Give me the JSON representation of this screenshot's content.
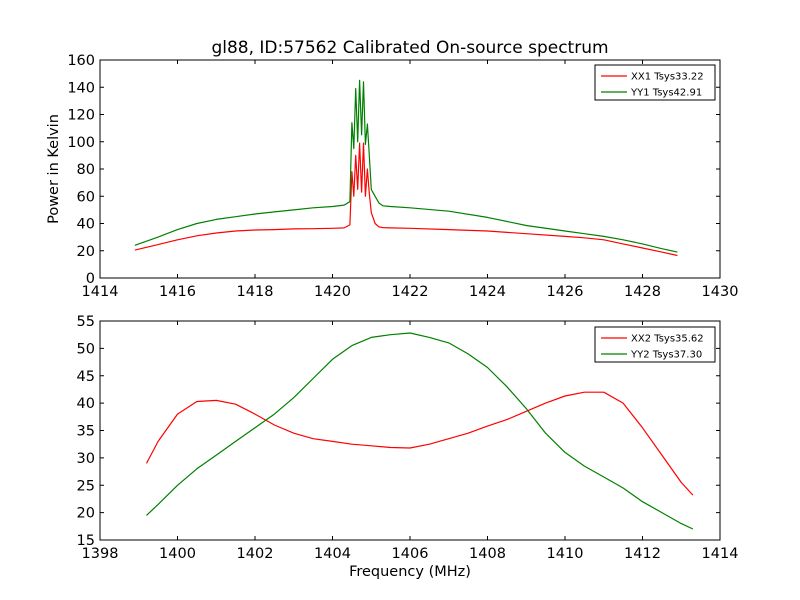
{
  "chart_data": [
    {
      "type": "line",
      "title": "gl88, ID:57562 Calibrated On-source spectrum",
      "xlabel": "",
      "ylabel": "Power in Kelvin",
      "xlim": [
        1414,
        1430
      ],
      "ylim": [
        0,
        160
      ],
      "xticks": [
        "1414",
        "1416",
        "1418",
        "1420",
        "1422",
        "1424",
        "1426",
        "1428",
        "1430"
      ],
      "yticks": [
        "0",
        "20",
        "40",
        "60",
        "80",
        "100",
        "120",
        "140",
        "160"
      ],
      "legend_position": "top-right",
      "grid": false,
      "series": [
        {
          "name": "XX1 Tsys33.22",
          "color": "#ff0000",
          "x": [
            1414.9,
            1415.5,
            1416.0,
            1416.5,
            1417.0,
            1417.5,
            1418.0,
            1418.5,
            1419.0,
            1419.5,
            1420.0,
            1420.3,
            1420.45,
            1420.5,
            1420.55,
            1420.6,
            1420.65,
            1420.7,
            1420.75,
            1420.8,
            1420.85,
            1420.9,
            1420.95,
            1421.0,
            1421.1,
            1421.2,
            1421.3,
            1421.5,
            1422.0,
            1423.0,
            1424.0,
            1425.0,
            1426.0,
            1426.5,
            1427.0,
            1427.5,
            1428.0,
            1428.5,
            1428.9
          ],
          "y": [
            20.5,
            24.5,
            28.0,
            31.0,
            33.0,
            34.5,
            35.2,
            35.5,
            36.0,
            36.2,
            36.5,
            36.8,
            39.0,
            78.0,
            60.0,
            90.0,
            65.0,
            99.0,
            63.0,
            99.0,
            60.0,
            80.0,
            62.0,
            48.0,
            40.0,
            37.5,
            37.0,
            36.8,
            36.5,
            35.5,
            34.5,
            32.5,
            30.5,
            29.5,
            28.0,
            25.0,
            22.0,
            19.0,
            16.5
          ]
        },
        {
          "name": "YY1 Tsys42.91",
          "color": "#008000",
          "x": [
            1414.9,
            1415.5,
            1416.0,
            1416.5,
            1417.0,
            1417.5,
            1418.0,
            1418.5,
            1419.0,
            1419.5,
            1420.0,
            1420.3,
            1420.45,
            1420.5,
            1420.55,
            1420.6,
            1420.65,
            1420.7,
            1420.75,
            1420.8,
            1420.85,
            1420.9,
            1420.95,
            1421.0,
            1421.1,
            1421.2,
            1421.3,
            1421.5,
            1422.0,
            1423.0,
            1424.0,
            1425.0,
            1426.0,
            1426.5,
            1427.0,
            1427.5,
            1428.0,
            1428.5,
            1428.9
          ],
          "y": [
            24.0,
            30.0,
            35.5,
            40.0,
            43.0,
            45.0,
            47.0,
            48.5,
            50.0,
            51.5,
            52.5,
            53.5,
            56.0,
            114.0,
            95.0,
            139.0,
            100.0,
            145.0,
            105.0,
            144.0,
            98.0,
            113.0,
            90.0,
            65.0,
            60.0,
            55.0,
            53.0,
            52.5,
            51.5,
            49.0,
            44.5,
            38.5,
            34.5,
            32.5,
            30.5,
            28.0,
            25.0,
            21.5,
            19.0
          ]
        }
      ]
    },
    {
      "type": "line",
      "title": "",
      "xlabel": "Frequency (MHz)",
      "ylabel": "",
      "xlim": [
        1398,
        1414
      ],
      "ylim": [
        15,
        55
      ],
      "xticks": [
        "1398",
        "1400",
        "1402",
        "1404",
        "1406",
        "1408",
        "1410",
        "1412",
        "1414"
      ],
      "yticks": [
        "15",
        "20",
        "25",
        "30",
        "35",
        "40",
        "45",
        "50",
        "55"
      ],
      "legend_position": "top-right",
      "grid": false,
      "series": [
        {
          "name": "XX2 Tsys35.62",
          "color": "#ff0000",
          "x": [
            1399.2,
            1399.5,
            1400.0,
            1400.5,
            1401.0,
            1401.5,
            1402.0,
            1402.5,
            1403.0,
            1403.5,
            1404.0,
            1404.5,
            1405.0,
            1405.5,
            1406.0,
            1406.5,
            1407.0,
            1407.5,
            1408.0,
            1408.5,
            1409.0,
            1409.5,
            1410.0,
            1410.5,
            1411.0,
            1411.5,
            1412.0,
            1412.5,
            1413.0,
            1413.3
          ],
          "y": [
            29.0,
            33.0,
            38.0,
            40.3,
            40.5,
            39.8,
            38.0,
            36.0,
            34.5,
            33.5,
            33.0,
            32.5,
            32.2,
            31.9,
            31.8,
            32.5,
            33.5,
            34.5,
            35.8,
            37.0,
            38.5,
            40.0,
            41.3,
            42.0,
            42.0,
            40.0,
            35.5,
            30.5,
            25.5,
            23.2
          ]
        },
        {
          "name": "YY2 Tsys37.30",
          "color": "#008000",
          "x": [
            1399.2,
            1399.5,
            1400.0,
            1400.5,
            1401.0,
            1401.5,
            1402.0,
            1402.5,
            1403.0,
            1403.5,
            1404.0,
            1404.5,
            1405.0,
            1405.5,
            1406.0,
            1406.5,
            1407.0,
            1407.5,
            1408.0,
            1408.5,
            1409.0,
            1409.5,
            1410.0,
            1410.5,
            1411.0,
            1411.5,
            1412.0,
            1412.5,
            1413.0,
            1413.3
          ],
          "y": [
            19.5,
            21.5,
            25.0,
            28.0,
            30.5,
            33.0,
            35.5,
            38.0,
            41.0,
            44.5,
            48.0,
            50.5,
            52.0,
            52.5,
            52.8,
            52.0,
            51.0,
            49.0,
            46.5,
            43.0,
            39.0,
            34.5,
            31.0,
            28.5,
            26.5,
            24.5,
            22.0,
            20.0,
            18.0,
            17.0
          ]
        }
      ]
    }
  ]
}
